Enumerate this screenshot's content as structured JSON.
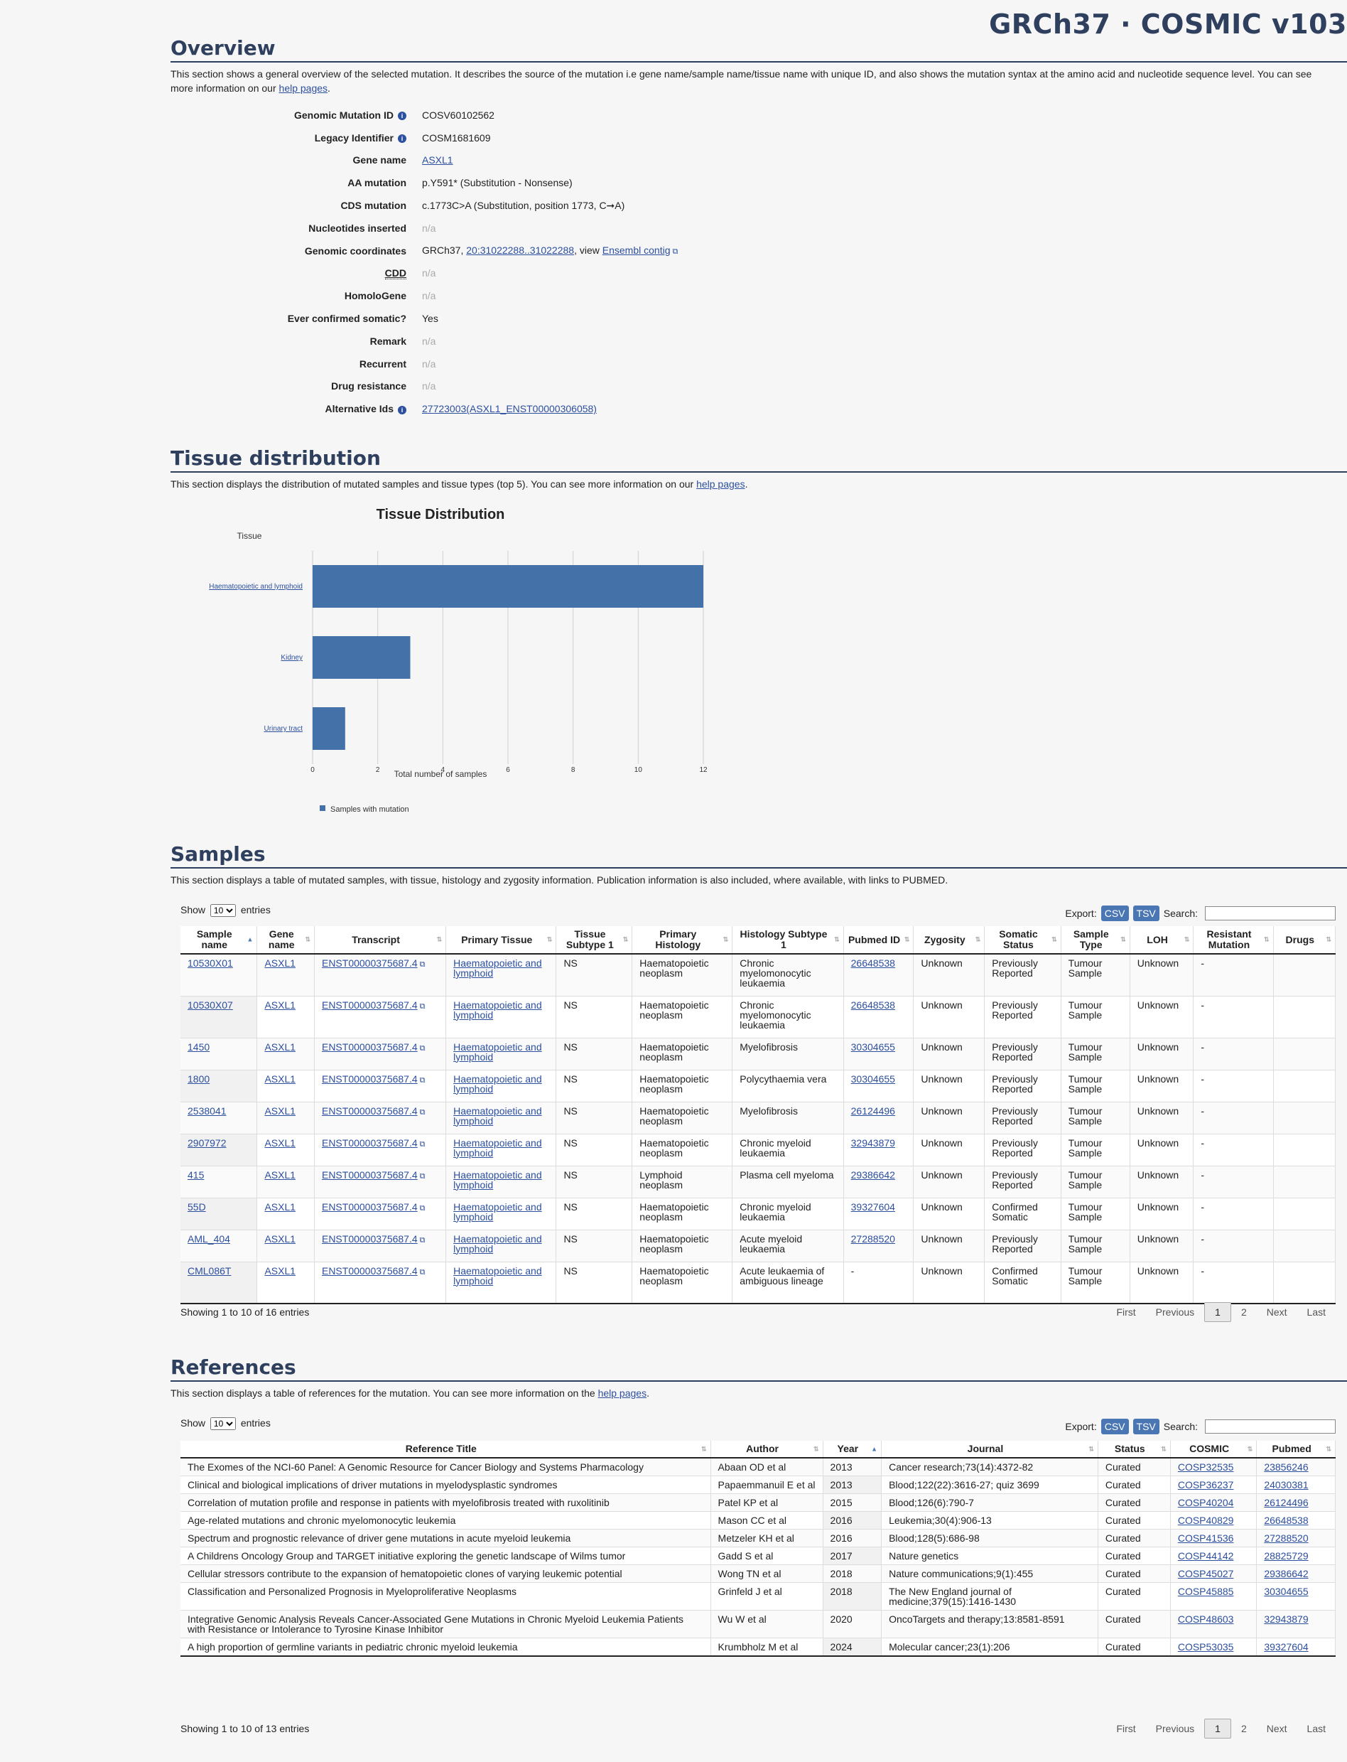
{
  "header": {
    "title": "GRCh37 · COSMIC v103"
  },
  "overview": {
    "heading": "Overview",
    "intro_text": "This section shows a general overview of the selected mutation. It describes the source of the mutation i.e gene name/sample name/tissue name with unique ID, and also shows the mutation syntax at the amino acid and nucleotide sequence level. You can see more information on our ",
    "intro_link": "help pages",
    "intro_end": ".",
    "fields": {
      "genomic_mutation_id": {
        "label": "Genomic Mutation ID",
        "value": "COSV60102562"
      },
      "legacy_identifier": {
        "label": "Legacy Identifier",
        "value": "COSM1681609"
      },
      "gene_name": {
        "label": "Gene name",
        "value": "ASXL1"
      },
      "aa_mutation": {
        "label": "AA mutation",
        "value": "p.Y591* (Substitution - Nonsense)"
      },
      "cds_mutation": {
        "label": "CDS mutation",
        "value": "c.1773C>A (Substitution, position 1773, C➞A)"
      },
      "nucleotides_inserted": {
        "label": "Nucleotides inserted",
        "value": "n/a"
      },
      "genomic_coordinates": {
        "label": "Genomic coordinates",
        "prefix": "GRCh37, ",
        "link": "20:31022288..31022288",
        "middle": ", view ",
        "link2": "Ensembl contig"
      },
      "cdd": {
        "label": "CDD",
        "value": "n/a"
      },
      "homologene": {
        "label": "HomoloGene",
        "value": "n/a"
      },
      "ever_confirmed": {
        "label": "Ever confirmed somatic?",
        "value": "Yes"
      },
      "remark": {
        "label": "Remark",
        "value": "n/a"
      },
      "recurrent": {
        "label": "Recurrent",
        "value": "n/a"
      },
      "drug_resistance": {
        "label": "Drug resistance",
        "value": "n/a"
      },
      "alternative_ids": {
        "label": "Alternative Ids",
        "value": "27723003(ASXL1_ENST00000306058)"
      }
    }
  },
  "tissue": {
    "heading": "Tissue distribution",
    "intro_text": "This section displays the distribution of mutated samples and tissue types (top 5). You can see more information on our ",
    "intro_link": "help pages",
    "intro_end": "."
  },
  "chart_data": {
    "type": "bar",
    "orientation": "horizontal",
    "title": "Tissue Distribution",
    "ylabel": "Tissue",
    "xlabel": "Total number of samples",
    "categories": [
      "Haematopoietic and lymphoid",
      "Kidney",
      "Urinary tract"
    ],
    "values": [
      12,
      3,
      1
    ],
    "xlim": [
      0,
      12
    ],
    "xticks": [
      0,
      2,
      4,
      6,
      8,
      10,
      12
    ],
    "grid": true,
    "legend": {
      "position": "bottom-left",
      "entries": [
        "Samples with mutation"
      ]
    },
    "color": "#4472a8"
  },
  "samples": {
    "heading": "Samples",
    "intro_text": "This section displays a table of mutated samples, with tissue, histology and zygosity information. Publication information is also included, where available, with links to PUBMED.",
    "show_label": "Show",
    "entries_label": "entries",
    "page_size": "10",
    "export_label": "Export:",
    "csv": "CSV",
    "tsv": "TSV",
    "search_label": "Search:",
    "columns": [
      "Sample name",
      "Gene name",
      "Transcript",
      "Primary Tissue",
      "Tissue Subtype 1",
      "Primary Histology",
      "Histology Subtype 1",
      "Pubmed ID",
      "Zygosity",
      "Somatic Status",
      "Sample Type",
      "LOH",
      "Resistant Mutation",
      "Drugs"
    ],
    "rows": [
      [
        "10530X01",
        "ASXL1",
        "ENST00000375687.4",
        "Haematopoietic and lymphoid",
        "NS",
        "Haematopoietic neoplasm",
        "Chronic myelomonocytic leukaemia",
        "26648538",
        "Unknown",
        "Previously Reported",
        "Tumour Sample",
        "Unknown",
        "-",
        ""
      ],
      [
        "10530X07",
        "ASXL1",
        "ENST00000375687.4",
        "Haematopoietic and lymphoid",
        "NS",
        "Haematopoietic neoplasm",
        "Chronic myelomonocytic leukaemia",
        "26648538",
        "Unknown",
        "Previously Reported",
        "Tumour Sample",
        "Unknown",
        "-",
        ""
      ],
      [
        "1450",
        "ASXL1",
        "ENST00000375687.4",
        "Haematopoietic and lymphoid",
        "NS",
        "Haematopoietic neoplasm",
        "Myelofibrosis",
        "30304655",
        "Unknown",
        "Previously Reported",
        "Tumour Sample",
        "Unknown",
        "-",
        ""
      ],
      [
        "1800",
        "ASXL1",
        "ENST00000375687.4",
        "Haematopoietic and lymphoid",
        "NS",
        "Haematopoietic neoplasm",
        "Polycythaemia vera",
        "30304655",
        "Unknown",
        "Previously Reported",
        "Tumour Sample",
        "Unknown",
        "-",
        ""
      ],
      [
        "2538041",
        "ASXL1",
        "ENST00000375687.4",
        "Haematopoietic and lymphoid",
        "NS",
        "Haematopoietic neoplasm",
        "Myelofibrosis",
        "26124496",
        "Unknown",
        "Previously Reported",
        "Tumour Sample",
        "Unknown",
        "-",
        ""
      ],
      [
        "2907972",
        "ASXL1",
        "ENST00000375687.4",
        "Haematopoietic and lymphoid",
        "NS",
        "Haematopoietic neoplasm",
        "Chronic myeloid leukaemia",
        "32943879",
        "Unknown",
        "Previously Reported",
        "Tumour Sample",
        "Unknown",
        "-",
        ""
      ],
      [
        "415",
        "ASXL1",
        "ENST00000375687.4",
        "Haematopoietic and lymphoid",
        "NS",
        "Lymphoid neoplasm",
        "Plasma cell myeloma",
        "29386642",
        "Unknown",
        "Previously Reported",
        "Tumour Sample",
        "Unknown",
        "-",
        ""
      ],
      [
        "55D",
        "ASXL1",
        "ENST00000375687.4",
        "Haematopoietic and lymphoid",
        "NS",
        "Haematopoietic neoplasm",
        "Chronic myeloid leukaemia",
        "39327604",
        "Unknown",
        "Confirmed Somatic",
        "Tumour Sample",
        "Unknown",
        "-",
        ""
      ],
      [
        "AML_404",
        "ASXL1",
        "ENST00000375687.4",
        "Haematopoietic and lymphoid",
        "NS",
        "Haematopoietic neoplasm",
        "Acute myeloid leukaemia",
        "27288520",
        "Unknown",
        "Previously Reported",
        "Tumour Sample",
        "Unknown",
        "-",
        ""
      ],
      [
        "CML086T",
        "ASXL1",
        "ENST00000375687.4",
        "Haematopoietic and lymphoid",
        "NS",
        "Haematopoietic neoplasm",
        "Acute leukaemia of ambiguous lineage",
        "-",
        "Unknown",
        "Confirmed Somatic",
        "Tumour Sample",
        "Unknown",
        "-",
        ""
      ]
    ],
    "info": "Showing 1 to 10 of 16 entries",
    "pager": {
      "first": "First",
      "previous": "Previous",
      "page1": "1",
      "page2": "2",
      "next": "Next",
      "last": "Last"
    }
  },
  "references": {
    "heading": "References",
    "intro_text": "This section displays a table of references for the mutation. You can see more information on the ",
    "intro_link": "help pages",
    "intro_end": ".",
    "show_label": "Show",
    "entries_label": "entries",
    "page_size": "10",
    "export_label": "Export:",
    "csv": "CSV",
    "tsv": "TSV",
    "search_label": "Search:",
    "columns": [
      "Reference Title",
      "Author",
      "Year",
      "Journal",
      "Status",
      "COSMIC",
      "Pubmed"
    ],
    "rows": [
      [
        "The Exomes of the NCI-60 Panel: A Genomic Resource for Cancer Biology and Systems Pharmacology",
        "Abaan OD et al",
        "2013",
        "Cancer research;73(14):4372-82",
        "Curated",
        "COSP32535",
        "23856246"
      ],
      [
        "Clinical and biological implications of driver mutations in myelodysplastic syndromes",
        "Papaemmanuil E et al",
        "2013",
        "Blood;122(22):3616-27; quiz 3699",
        "Curated",
        "COSP36237",
        "24030381"
      ],
      [
        "Correlation of mutation profile and response in patients with myelofibrosis treated with ruxolitinib",
        "Patel KP et al",
        "2015",
        "Blood;126(6):790-7",
        "Curated",
        "COSP40204",
        "26124496"
      ],
      [
        "Age-related mutations and chronic myelomonocytic leukemia",
        "Mason CC et al",
        "2016",
        "Leukemia;30(4):906-13",
        "Curated",
        "COSP40829",
        "26648538"
      ],
      [
        "Spectrum and prognostic relevance of driver gene mutations in acute myeloid leukemia",
        "Metzeler KH et al",
        "2016",
        "Blood;128(5):686-98",
        "Curated",
        "COSP41536",
        "27288520"
      ],
      [
        "A Childrens Oncology Group and TARGET initiative exploring the genetic landscape of Wilms tumor",
        "Gadd S et al",
        "2017",
        "Nature genetics",
        "Curated",
        "COSP44142",
        "28825729"
      ],
      [
        "Cellular stressors contribute to the expansion of hematopoietic clones of varying leukemic potential",
        "Wong TN et al",
        "2018",
        "Nature communications;9(1):455",
        "Curated",
        "COSP45027",
        "29386642"
      ],
      [
        "Classification and Personalized Prognosis in Myeloproliferative Neoplasms",
        "Grinfeld J et al",
        "2018",
        "The New England journal of medicine;379(15):1416-1430",
        "Curated",
        "COSP45885",
        "30304655"
      ],
      [
        "Integrative Genomic Analysis Reveals Cancer-Associated Gene Mutations in Chronic Myeloid Leukemia Patients with Resistance or Intolerance to Tyrosine Kinase Inhibitor",
        "Wu W et al",
        "2020",
        "OncoTargets and therapy;13:8581-8591",
        "Curated",
        "COSP48603",
        "32943879"
      ],
      [
        "A high proportion of germline variants in pediatric chronic myeloid leukemia",
        "Krumbholz M et al",
        "2024",
        "Molecular cancer;23(1):206",
        "Curated",
        "COSP53035",
        "39327604"
      ]
    ],
    "info": "Showing 1 to 10 of 13 entries",
    "pager": {
      "first": "First",
      "previous": "Previous",
      "page1": "1",
      "page2": "2",
      "next": "Next",
      "last": "Last"
    }
  }
}
